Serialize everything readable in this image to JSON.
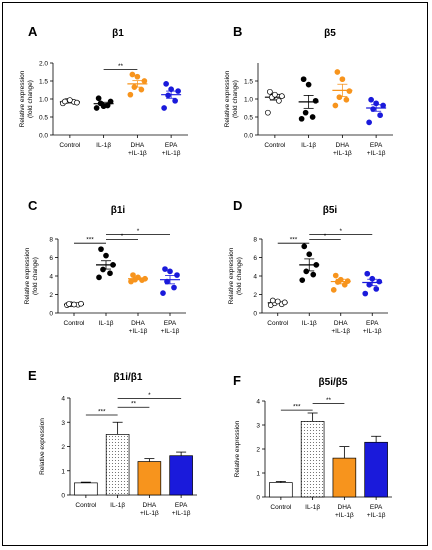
{
  "chart_data": [
    {
      "panel": "A",
      "title": "β1",
      "type": "scatter",
      "ylabel_lines": [
        "Relative expression",
        "(fold change)"
      ],
      "ylim": [
        0,
        2.0
      ],
      "yticks": [
        "0.0",
        "0.5",
        "1.0",
        "1.5",
        "2.0"
      ],
      "categories": [
        [
          "Control"
        ],
        [
          "IL-1β"
        ],
        [
          "DHA",
          "+IL-1β"
        ],
        [
          "EPA",
          "+IL-1β"
        ]
      ],
      "colors": [
        "#ffffff",
        "#000000",
        "#f7941d",
        "#1a1adb"
      ],
      "points": [
        [
          0.88,
          0.92,
          0.95,
          0.9,
          0.97,
          0.93
        ],
        [
          0.75,
          0.82,
          0.88,
          0.93,
          0.8,
          1.02
        ],
        [
          1.12,
          1.26,
          1.33,
          1.5,
          1.62,
          1.68
        ],
        [
          0.75,
          0.95,
          1.1,
          1.22,
          1.27,
          1.42
        ]
      ],
      "means": [
        0.92,
        0.87,
        1.42,
        1.12
      ],
      "sems": [
        0.03,
        0.04,
        0.09,
        0.1
      ],
      "sig": [
        {
          "from": 1,
          "to": 2,
          "label": "**",
          "y": 1.82
        }
      ]
    },
    {
      "panel": "B",
      "title": "β5",
      "type": "scatter",
      "ylabel_lines": [
        "Relative expression",
        "(fold change)"
      ],
      "ylim": [
        0,
        2.0
      ],
      "yticks": [
        "0.0",
        "0.5",
        "1.0",
        "1.5"
      ],
      "categories": [
        [
          "Control"
        ],
        [
          "IL-1β"
        ],
        [
          "DHA",
          "+IL-1β"
        ],
        [
          "EPA",
          "+IL-1β"
        ]
      ],
      "colors": [
        "#ffffff",
        "#000000",
        "#f7941d",
        "#1a1adb"
      ],
      "points": [
        [
          0.62,
          0.95,
          1.05,
          1.08,
          1.12,
          1.2
        ],
        [
          0.45,
          0.5,
          0.62,
          0.95,
          1.4,
          1.55
        ],
        [
          0.82,
          0.98,
          1.05,
          1.22,
          1.55,
          1.75
        ],
        [
          0.35,
          0.55,
          0.72,
          0.82,
          0.88,
          0.98
        ]
      ],
      "means": [
        1.05,
        0.92,
        1.24,
        0.75
      ],
      "sems": [
        0.08,
        0.18,
        0.17,
        0.09
      ],
      "sig": []
    },
    {
      "panel": "C",
      "title": "β1i",
      "type": "scatter",
      "ylabel_lines": [
        "Relative expression",
        "(fold change)"
      ],
      "ylim": [
        0,
        8
      ],
      "yticks": [
        "0",
        "2",
        "4",
        "6",
        "8"
      ],
      "categories": [
        [
          "Control"
        ],
        [
          "IL-1β"
        ],
        [
          "DHA",
          "+IL-1β"
        ],
        [
          "EPA",
          "+IL-1β"
        ]
      ],
      "colors": [
        "#ffffff",
        "#000000",
        "#f7941d",
        "#1a1adb"
      ],
      "points": [
        [
          0.85,
          0.9,
          0.95,
          1.0,
          0.92,
          0.98
        ],
        [
          3.85,
          4.3,
          4.7,
          5.2,
          6.2,
          6.9
        ],
        [
          3.4,
          3.55,
          3.6,
          3.7,
          3.85,
          4.1
        ],
        [
          2.15,
          2.75,
          3.4,
          4.1,
          4.5,
          4.75
        ]
      ],
      "means": [
        0.93,
        5.2,
        3.7,
        3.6
      ],
      "sems": [
        0.03,
        0.45,
        0.1,
        0.45
      ],
      "sig": [
        {
          "from": 0,
          "to": 1,
          "label": "***",
          "y": 7.55
        },
        {
          "from": 1,
          "to": 2,
          "label": "*",
          "y": 7.95
        },
        {
          "from": 1,
          "to": 3,
          "label": "*",
          "y": 8.5
        }
      ]
    },
    {
      "panel": "D",
      "title": "β5i",
      "type": "scatter",
      "ylabel_lines": [
        "Relative expression",
        "(fold change)"
      ],
      "ylim": [
        0,
        8
      ],
      "yticks": [
        "0",
        "2",
        "4",
        "6",
        "8"
      ],
      "categories": [
        [
          "Control"
        ],
        [
          "IL-1β"
        ],
        [
          "DHA",
          "+IL-1β"
        ],
        [
          "EPA",
          "+IL-1β"
        ]
      ],
      "colors": [
        "#ffffff",
        "#000000",
        "#f7941d",
        "#1a1adb"
      ],
      "points": [
        [
          0.85,
          0.95,
          1.05,
          1.15,
          1.25,
          1.35
        ],
        [
          3.55,
          4.15,
          4.5,
          5.2,
          6.35,
          7.2
        ],
        [
          2.5,
          3.05,
          3.35,
          3.45,
          3.6,
          4.05
        ],
        [
          2.1,
          2.6,
          3.05,
          3.4,
          3.7,
          4.25
        ]
      ],
      "means": [
        1.1,
        5.2,
        3.4,
        3.3
      ],
      "sems": [
        0.07,
        0.65,
        0.25,
        0.35
      ],
      "sig": [
        {
          "from": 0,
          "to": 1,
          "label": "***",
          "y": 7.55
        },
        {
          "from": 1,
          "to": 2,
          "label": "*",
          "y": 7.95
        },
        {
          "from": 1,
          "to": 3,
          "label": "*",
          "y": 8.5
        }
      ]
    },
    {
      "panel": "E",
      "title": "β1i/β1",
      "type": "bar",
      "ylabel_lines": [
        "Relative expression"
      ],
      "ylim": [
        0,
        4
      ],
      "yticks": [
        "0",
        "1",
        "2",
        "3",
        "4"
      ],
      "categories": [
        [
          "Control"
        ],
        [
          "IL-1β"
        ],
        [
          "DHA",
          "+IL-1β"
        ],
        [
          "EPA",
          "+IL-1β"
        ]
      ],
      "fills": [
        "white",
        "dots",
        "#f7941d",
        "#1a1adb"
      ],
      "values": [
        0.5,
        2.5,
        1.38,
        1.62
      ],
      "errors": [
        0.03,
        0.5,
        0.12,
        0.15
      ],
      "sig": [
        {
          "from": 0,
          "to": 1,
          "label": "***",
          "y": 3.3
        },
        {
          "from": 1,
          "to": 2,
          "label": "**",
          "y": 3.62
        },
        {
          "from": 1,
          "to": 3,
          "label": "*",
          "y": 3.98
        }
      ]
    },
    {
      "panel": "F",
      "title": "β5i/β5",
      "type": "bar",
      "ylabel_lines": [
        "Relative expression"
      ],
      "ylim": [
        0,
        4
      ],
      "yticks": [
        "0",
        "1",
        "2",
        "3",
        "4"
      ],
      "categories": [
        [
          "Control"
        ],
        [
          "IL-1β"
        ],
        [
          "DHA",
          "+IL-1β"
        ],
        [
          "EPA",
          "+IL-1β"
        ]
      ],
      "fills": [
        "white",
        "dots",
        "#f7941d",
        "#1a1adb"
      ],
      "values": [
        0.6,
        3.15,
        1.62,
        2.28
      ],
      "errors": [
        0.05,
        0.35,
        0.48,
        0.25
      ],
      "sig": [
        {
          "from": 0,
          "to": 1,
          "label": "***",
          "y": 3.62
        },
        {
          "from": 1,
          "to": 2,
          "label": "**",
          "y": 3.9
        }
      ]
    }
  ]
}
